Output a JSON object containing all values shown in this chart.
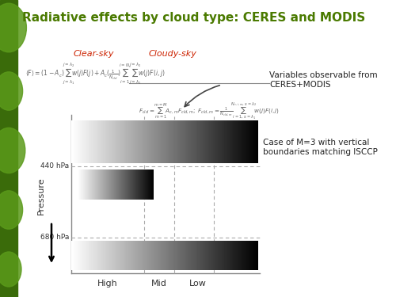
{
  "title": "Radiative effects by cloud type: CERES and MODIS",
  "title_color": "#4a7a00",
  "title_fontsize": 11,
  "bg_color": "#ffffff",
  "label_clearsky": "Clear-sky",
  "label_cloudysky": "Cloudy-sky",
  "label_color": "#cc2200",
  "variables_text": "Variables observable from\nCERES+MODIS",
  "case_text": "Case of M=3 with vertical\nboundaries matching ISCCP",
  "pressure_label": "Pressure",
  "hpa440_label": "440 hPa",
  "hpa680_label": "680 hPa",
  "xlabel_high": "High",
  "xlabel_mid": "Mid",
  "xlabel_low": "Low",
  "leaf_dark": "#3a6b0a",
  "leaf_light": "#5a9a1a",
  "left_bar_width": 0.045
}
